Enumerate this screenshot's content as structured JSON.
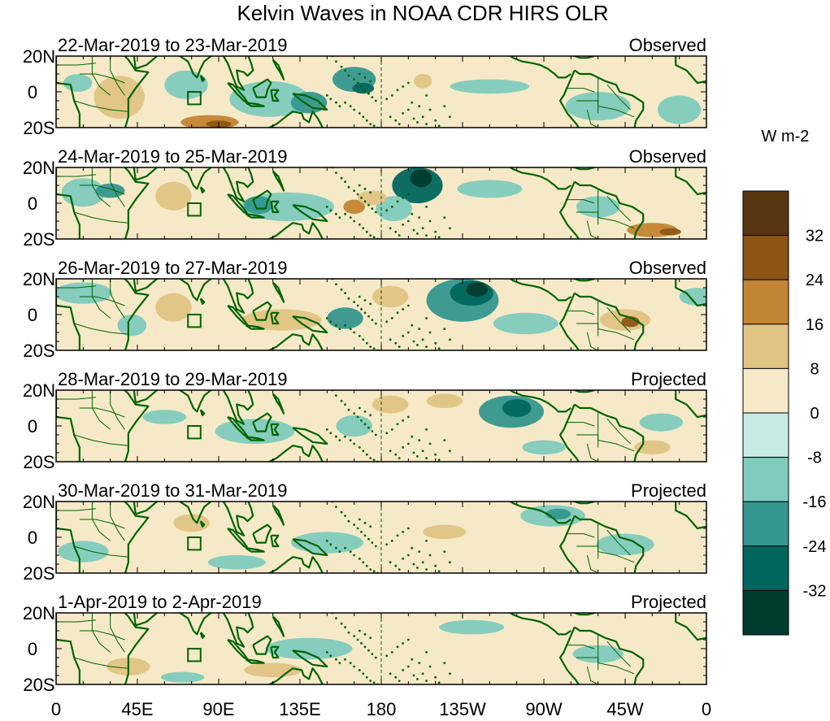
{
  "title": "Kelvin Waves in NOAA CDR HIRS OLR",
  "panels": [
    {
      "dates": "22-Mar-2019 to 23-Mar-2019",
      "type": "Observed"
    },
    {
      "dates": "24-Mar-2019 to 25-Mar-2019",
      "type": "Observed"
    },
    {
      "dates": "26-Mar-2019 to 27-Mar-2019",
      "type": "Observed"
    },
    {
      "dates": "28-Mar-2019 to 29-Mar-2019",
      "type": "Projected"
    },
    {
      "dates": "30-Mar-2019 to 31-Mar-2019",
      "type": "Projected"
    },
    {
      "dates": "1-Apr-2019 to 2-Apr-2019",
      "type": "Projected"
    }
  ],
  "lat_labels": [
    "20N",
    "0",
    "20S"
  ],
  "lon_labels": [
    "0",
    "45E",
    "90E",
    "135E",
    "180",
    "135W",
    "90W",
    "45W",
    "0"
  ],
  "colorbar": {
    "units": "W m-2",
    "labels": [
      "32",
      "24",
      "16",
      "8",
      "0",
      "-8",
      "-16",
      "-24",
      "-32"
    ],
    "colors": [
      "#573610",
      "#8e5614",
      "#c38533",
      "#e0c484",
      "#f6e9c8",
      "#c7ebe5",
      "#80cbbe",
      "#35978f",
      "#01665e",
      "#003c30"
    ]
  },
  "colors": {
    "land_outline": "#006400",
    "background": "#f6e9c8"
  },
  "anomalies": [
    [
      {
        "lon": 35,
        "lat": -3,
        "rx": 14,
        "ry": 12,
        "level": 3
      },
      {
        "lon": 72,
        "lat": 4,
        "rx": 12,
        "ry": 8,
        "level": 6
      },
      {
        "lon": 118,
        "lat": -4,
        "rx": 22,
        "ry": 10,
        "level": 6
      },
      {
        "lon": 140,
        "lat": -6,
        "rx": 10,
        "ry": 6,
        "level": 7
      },
      {
        "lon": 85,
        "lat": -17,
        "rx": 16,
        "ry": 4,
        "level": 2
      },
      {
        "lon": 90,
        "lat": -18,
        "rx": 7,
        "ry": 2,
        "level": 1
      },
      {
        "lon": 165,
        "lat": 7,
        "rx": 12,
        "ry": 7,
        "level": 7
      },
      {
        "lon": 170,
        "lat": 2,
        "rx": 6,
        "ry": 3,
        "level": 8
      },
      {
        "lon": 203,
        "lat": 6,
        "rx": 5,
        "ry": 4,
        "level": 3
      },
      {
        "lon": 240,
        "lat": 3,
        "rx": 22,
        "ry": 4,
        "level": 6
      },
      {
        "lon": 300,
        "lat": -8,
        "rx": 18,
        "ry": 8,
        "level": 6
      },
      {
        "lon": 345,
        "lat": -10,
        "rx": 12,
        "ry": 8,
        "level": 6
      },
      {
        "lon": 250,
        "lat": -14,
        "rx": 20,
        "ry": 4,
        "level": 4
      },
      {
        "lon": 12,
        "lat": 5,
        "rx": 8,
        "ry": 5,
        "level": 6
      }
    ],
    [
      {
        "lon": 15,
        "lat": 6,
        "rx": 12,
        "ry": 8,
        "level": 6
      },
      {
        "lon": 30,
        "lat": 7,
        "rx": 8,
        "ry": 4,
        "level": 7
      },
      {
        "lon": 65,
        "lat": 4,
        "rx": 10,
        "ry": 8,
        "level": 3
      },
      {
        "lon": 128,
        "lat": -2,
        "rx": 26,
        "ry": 8,
        "level": 6
      },
      {
        "lon": 112,
        "lat": -1,
        "rx": 8,
        "ry": 5,
        "level": 7
      },
      {
        "lon": 200,
        "lat": 10,
        "rx": 14,
        "ry": 10,
        "level": 8
      },
      {
        "lon": 202,
        "lat": 14,
        "rx": 6,
        "ry": 5,
        "level": 9
      },
      {
        "lon": 187,
        "lat": -3,
        "rx": 10,
        "ry": 7,
        "level": 6
      },
      {
        "lon": 165,
        "lat": -2,
        "rx": 6,
        "ry": 4,
        "level": 2
      },
      {
        "lon": 175,
        "lat": 3,
        "rx": 8,
        "ry": 4,
        "level": 3
      },
      {
        "lon": 240,
        "lat": 8,
        "rx": 18,
        "ry": 5,
        "level": 6
      },
      {
        "lon": 300,
        "lat": -2,
        "rx": 12,
        "ry": 6,
        "level": 6
      },
      {
        "lon": 330,
        "lat": -15,
        "rx": 14,
        "ry": 4,
        "level": 2
      },
      {
        "lon": 340,
        "lat": -16,
        "rx": 6,
        "ry": 2,
        "level": 1
      },
      {
        "lon": 100,
        "lat": -17,
        "rx": 20,
        "ry": 4,
        "level": 4
      }
    ],
    [
      {
        "lon": 15,
        "lat": 12,
        "rx": 16,
        "ry": 6,
        "level": 6
      },
      {
        "lon": 42,
        "lat": -6,
        "rx": 8,
        "ry": 6,
        "level": 6
      },
      {
        "lon": 65,
        "lat": 4,
        "rx": 10,
        "ry": 8,
        "level": 3
      },
      {
        "lon": 125,
        "lat": -3,
        "rx": 22,
        "ry": 6,
        "level": 3
      },
      {
        "lon": 160,
        "lat": -2,
        "rx": 10,
        "ry": 6,
        "level": 7
      },
      {
        "lon": 185,
        "lat": 10,
        "rx": 10,
        "ry": 6,
        "level": 3
      },
      {
        "lon": 225,
        "lat": 8,
        "rx": 20,
        "ry": 12,
        "level": 7
      },
      {
        "lon": 230,
        "lat": 12,
        "rx": 12,
        "ry": 7,
        "level": 8
      },
      {
        "lon": 233,
        "lat": 14,
        "rx": 6,
        "ry": 4,
        "level": 9
      },
      {
        "lon": 260,
        "lat": -5,
        "rx": 18,
        "ry": 6,
        "level": 6
      },
      {
        "lon": 315,
        "lat": -3,
        "rx": 14,
        "ry": 6,
        "level": 3
      },
      {
        "lon": 318,
        "lat": -4,
        "rx": 5,
        "ry": 3,
        "level": 1
      },
      {
        "lon": 355,
        "lat": 10,
        "rx": 10,
        "ry": 5,
        "level": 6
      }
    ],
    [
      {
        "lon": 60,
        "lat": 5,
        "rx": 12,
        "ry": 4,
        "level": 6
      },
      {
        "lon": 110,
        "lat": -3,
        "rx": 22,
        "ry": 7,
        "level": 6
      },
      {
        "lon": 165,
        "lat": 0,
        "rx": 10,
        "ry": 6,
        "level": 6
      },
      {
        "lon": 185,
        "lat": 12,
        "rx": 10,
        "ry": 5,
        "level": 3
      },
      {
        "lon": 215,
        "lat": 14,
        "rx": 10,
        "ry": 4,
        "level": 3
      },
      {
        "lon": 252,
        "lat": 8,
        "rx": 18,
        "ry": 9,
        "level": 7
      },
      {
        "lon": 255,
        "lat": 10,
        "rx": 8,
        "ry": 5,
        "level": 8
      },
      {
        "lon": 270,
        "lat": -12,
        "rx": 12,
        "ry": 4,
        "level": 6
      },
      {
        "lon": 335,
        "lat": 2,
        "rx": 12,
        "ry": 5,
        "level": 6
      },
      {
        "lon": 330,
        "lat": -12,
        "rx": 10,
        "ry": 4,
        "level": 3
      }
    ],
    [
      {
        "lon": 15,
        "lat": -8,
        "rx": 14,
        "ry": 6,
        "level": 6
      },
      {
        "lon": 75,
        "lat": 8,
        "rx": 10,
        "ry": 5,
        "level": 3
      },
      {
        "lon": 150,
        "lat": -3,
        "rx": 20,
        "ry": 6,
        "level": 6
      },
      {
        "lon": 275,
        "lat": 12,
        "rx": 18,
        "ry": 6,
        "level": 6
      },
      {
        "lon": 278,
        "lat": 13,
        "rx": 7,
        "ry": 3,
        "level": 7
      },
      {
        "lon": 215,
        "lat": 3,
        "rx": 12,
        "ry": 4,
        "level": 3
      },
      {
        "lon": 315,
        "lat": -4,
        "rx": 16,
        "ry": 6,
        "level": 6
      },
      {
        "lon": 100,
        "lat": -14,
        "rx": 16,
        "ry": 4,
        "level": 6
      }
    ],
    [
      {
        "lon": 40,
        "lat": -10,
        "rx": 12,
        "ry": 5,
        "level": 3
      },
      {
        "lon": 140,
        "lat": 0,
        "rx": 24,
        "ry": 6,
        "level": 6
      },
      {
        "lon": 120,
        "lat": -12,
        "rx": 16,
        "ry": 4,
        "level": 3
      },
      {
        "lon": 230,
        "lat": 12,
        "rx": 18,
        "ry": 4,
        "level": 6
      },
      {
        "lon": 300,
        "lat": -3,
        "rx": 14,
        "ry": 5,
        "level": 6
      },
      {
        "lon": 70,
        "lat": -16,
        "rx": 12,
        "ry": 3,
        "level": 6
      }
    ]
  ]
}
